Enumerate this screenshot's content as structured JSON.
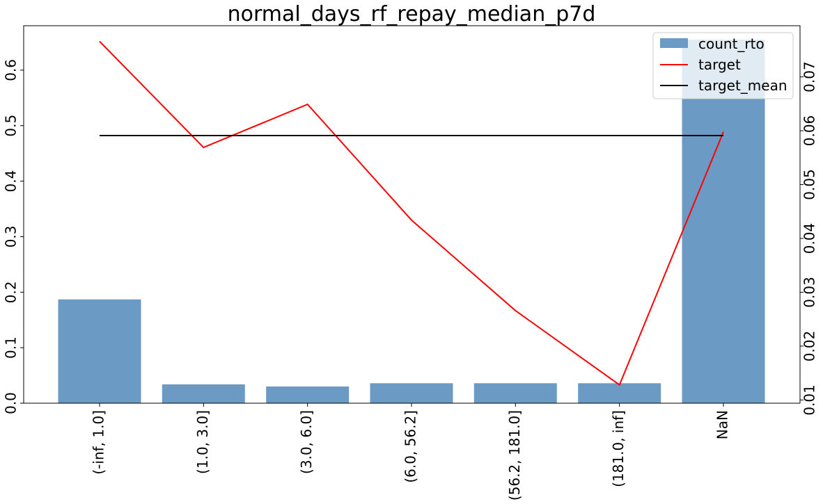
{
  "chart_data": {
    "type": "bar",
    "title": "normal_days_rf_repay_median_p7d",
    "categories": [
      "(-inf, 1.0]",
      "(1.0, 3.0]",
      "(3.0, 6.0]",
      "(6.0, 56.2]",
      "(56.2, 181.0]",
      "(181.0, inf]",
      "NaN"
    ],
    "left_axis": {
      "ylim": [
        0,
        0.68
      ],
      "ticks": [
        0.0,
        0.1,
        0.2,
        0.3,
        0.4,
        0.5,
        0.6
      ],
      "tick_labels": [
        "0.0",
        "0.1",
        "0.2",
        "0.3",
        "0.4",
        "0.5",
        "0.6"
      ]
    },
    "right_axis": {
      "ylim": [
        0.0094,
        0.0795
      ],
      "ticks": [
        0.01,
        0.02,
        0.03,
        0.04,
        0.05,
        0.06,
        0.07
      ],
      "tick_labels": [
        "0.01",
        "0.02",
        "0.03",
        "0.04",
        "0.05",
        "0.06",
        "0.07"
      ]
    },
    "series": [
      {
        "name": "count_rto",
        "kind": "bar",
        "axis": "left",
        "color": "#6b9ac4",
        "values": [
          0.187,
          0.034,
          0.03,
          0.036,
          0.036,
          0.036,
          0.655
        ]
      },
      {
        "name": "target",
        "kind": "line",
        "axis": "right",
        "color": "#ff0000",
        "values": [
          0.0766,
          0.0569,
          0.0649,
          0.0434,
          0.0266,
          0.0128,
          0.0598
        ]
      },
      {
        "name": "target_mean",
        "kind": "line",
        "axis": "right",
        "color": "#000000",
        "values": [
          0.0591,
          0.0591,
          0.0591,
          0.0591,
          0.0591,
          0.0591,
          0.0591
        ]
      }
    ],
    "legend_position": "top-right",
    "grid": false
  }
}
